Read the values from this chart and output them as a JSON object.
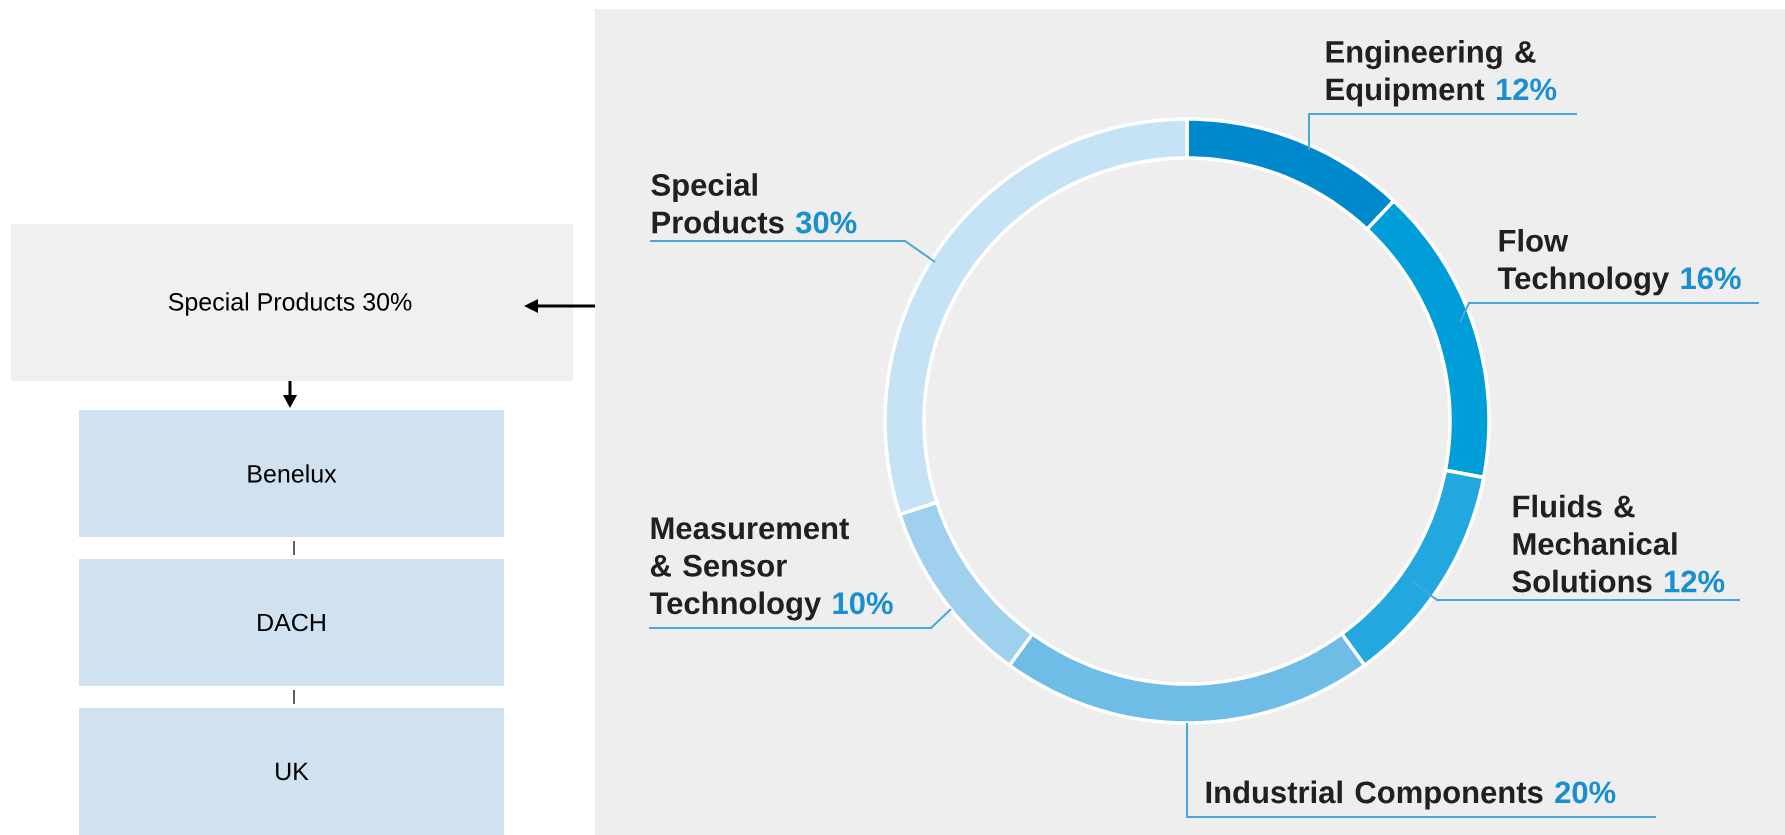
{
  "chart_data": [
    {
      "type": "other",
      "annotations": [
        "Special Products 30%",
        "Benelux",
        "DACH",
        "UK"
      ]
    },
    {
      "type": "donut",
      "categories": [
        "Engineering & Equipment",
        "Flow Technology",
        "Fluids & Mechanical Solutions",
        "Industrial Components",
        "Measurement & Sensor Technology",
        "Special Products"
      ],
      "values": [
        12,
        16,
        12,
        20,
        10,
        30
      ],
      "value_labels": [
        "12%",
        "16%",
        "12%",
        "20%",
        "10%",
        "30%"
      ],
      "colors": [
        "#0088cc",
        "#009ed8",
        "#22a8de",
        "#6fbde6",
        "#9fd0ee",
        "#c5e3f4"
      ]
    }
  ]
}
